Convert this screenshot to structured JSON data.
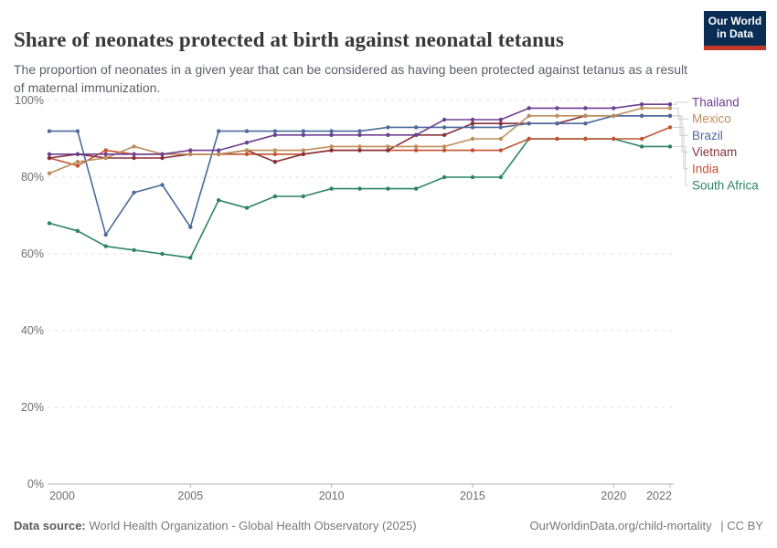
{
  "header": {
    "title": "Share of neonates protected at birth against neonatal tetanus",
    "subtitle": "The proportion of neonates in a given year that can be considered as having been protected against tetanus as a result of maternal immunization."
  },
  "logo": {
    "line1": "Our World",
    "line2": "in Data",
    "bg_color": "#0a2d54",
    "accent_color": "#c0392b"
  },
  "chart_data": {
    "type": "line",
    "x": [
      2000,
      2001,
      2002,
      2003,
      2004,
      2005,
      2006,
      2007,
      2008,
      2009,
      2010,
      2011,
      2012,
      2013,
      2014,
      2015,
      2016,
      2017,
      2018,
      2019,
      2020,
      2021,
      2022
    ],
    "xlim": [
      2000,
      2022
    ],
    "ylim": [
      0,
      100
    ],
    "x_ticks": [
      2000,
      2005,
      2010,
      2015,
      2020,
      2022
    ],
    "y_ticks": [
      0,
      20,
      40,
      60,
      80,
      100
    ],
    "y_tick_suffix": "%",
    "grid": "dashed-horizontal",
    "legend_position": "right",
    "series": [
      {
        "name": "Thailand",
        "color": "#6D3E91",
        "values": [
          86,
          86,
          86,
          86,
          86,
          87,
          87,
          89,
          91,
          91,
          91,
          91,
          91,
          91,
          95,
          95,
          95,
          98,
          98,
          98,
          98,
          99,
          99
        ]
      },
      {
        "name": "Mexico",
        "color": "#BC8E5A",
        "values": [
          81,
          84,
          85,
          88,
          86,
          86,
          86,
          87,
          87,
          87,
          88,
          88,
          88,
          88,
          88,
          90,
          90,
          96,
          96,
          96,
          96,
          98,
          98
        ]
      },
      {
        "name": "Brazil",
        "color": "#4C6A9C",
        "values": [
          92,
          92,
          65,
          76,
          78,
          67,
          92,
          92,
          92,
          92,
          92,
          92,
          93,
          93,
          93,
          93,
          93,
          94,
          94,
          94,
          96,
          96,
          96
        ]
      },
      {
        "name": "Vietnam",
        "color": "#883039",
        "values": [
          85,
          86,
          85,
          85,
          85,
          86,
          86,
          87,
          84,
          86,
          87,
          87,
          87,
          91,
          91,
          94,
          94,
          94,
          94,
          96,
          96,
          96,
          96
        ]
      },
      {
        "name": "India",
        "color": "#C4522F",
        "values": [
          85,
          83,
          87,
          86,
          86,
          86,
          86,
          86,
          86,
          86,
          87,
          87,
          87,
          87,
          87,
          87,
          87,
          90,
          90,
          90,
          90,
          90,
          93
        ]
      },
      {
        "name": "South Africa",
        "color": "#2C8465",
        "values": [
          68,
          66,
          62,
          61,
          60,
          59,
          74,
          72,
          75,
          75,
          77,
          77,
          77,
          77,
          80,
          80,
          80,
          90,
          90,
          90,
          90,
          88,
          88
        ]
      }
    ]
  },
  "footer": {
    "source_label": "Data source:",
    "source_text": "World Health Organization - Global Health Observatory (2025)",
    "url": "OurWorldinData.org/child-mortality",
    "license": "| CC BY"
  }
}
